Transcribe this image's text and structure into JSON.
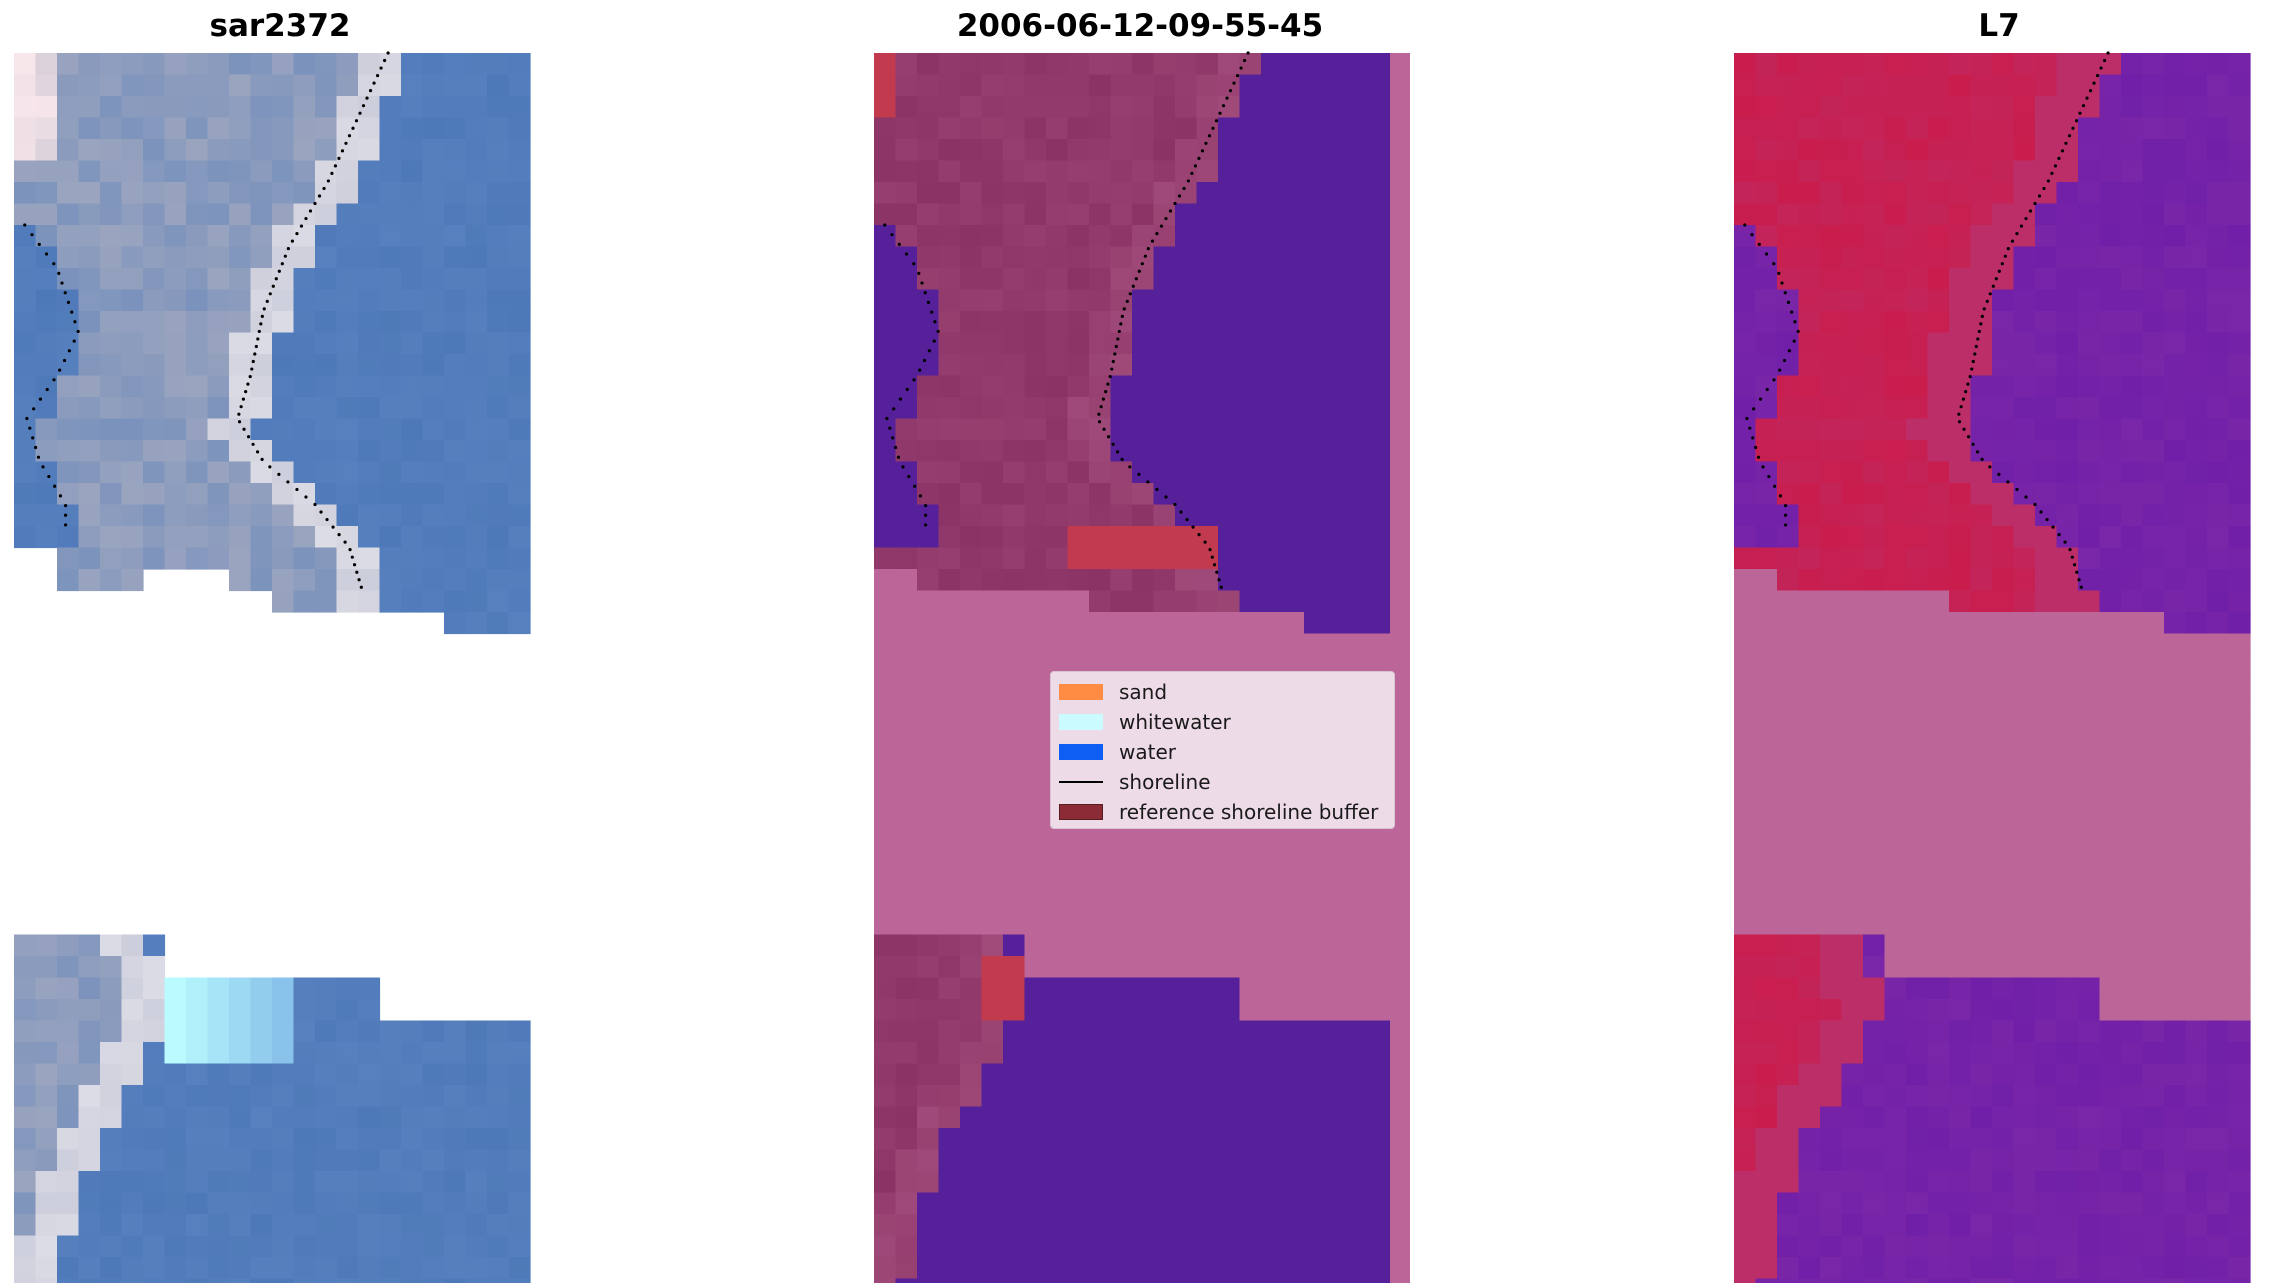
{
  "panels": [
    {
      "title": "sar2372"
    },
    {
      "title": "2006-06-12-09-55-45"
    },
    {
      "title": "L7"
    }
  ],
  "legend": {
    "items": [
      {
        "label": "sand",
        "color": "#ff8c42",
        "kind": "patch"
      },
      {
        "label": "whitewater",
        "color": "#c9fbff",
        "kind": "patch"
      },
      {
        "label": "water",
        "color": "#0d5ef2",
        "kind": "patch"
      },
      {
        "label": "shoreline",
        "color": "#000000",
        "kind": "line"
      },
      {
        "label": "reference shoreline buffer",
        "color": "#8b2b35",
        "kind": "patch"
      }
    ]
  },
  "colors": {
    "rgb_water": "#4e79b8",
    "rgb_sand": "#a8acc0",
    "rgb_bright": "#dcdce6",
    "rgb_foam": "#b9fbff",
    "class_nodata": "#bb6598",
    "class_water": "#55209a",
    "class_sand_buffer": "#8c3365",
    "class_buffer_red": "#c13a4d",
    "mndwi_land": "#c91d4e",
    "mndwi_water": "#7a26a8",
    "mndwi_nodata": "#bb6598"
  }
}
